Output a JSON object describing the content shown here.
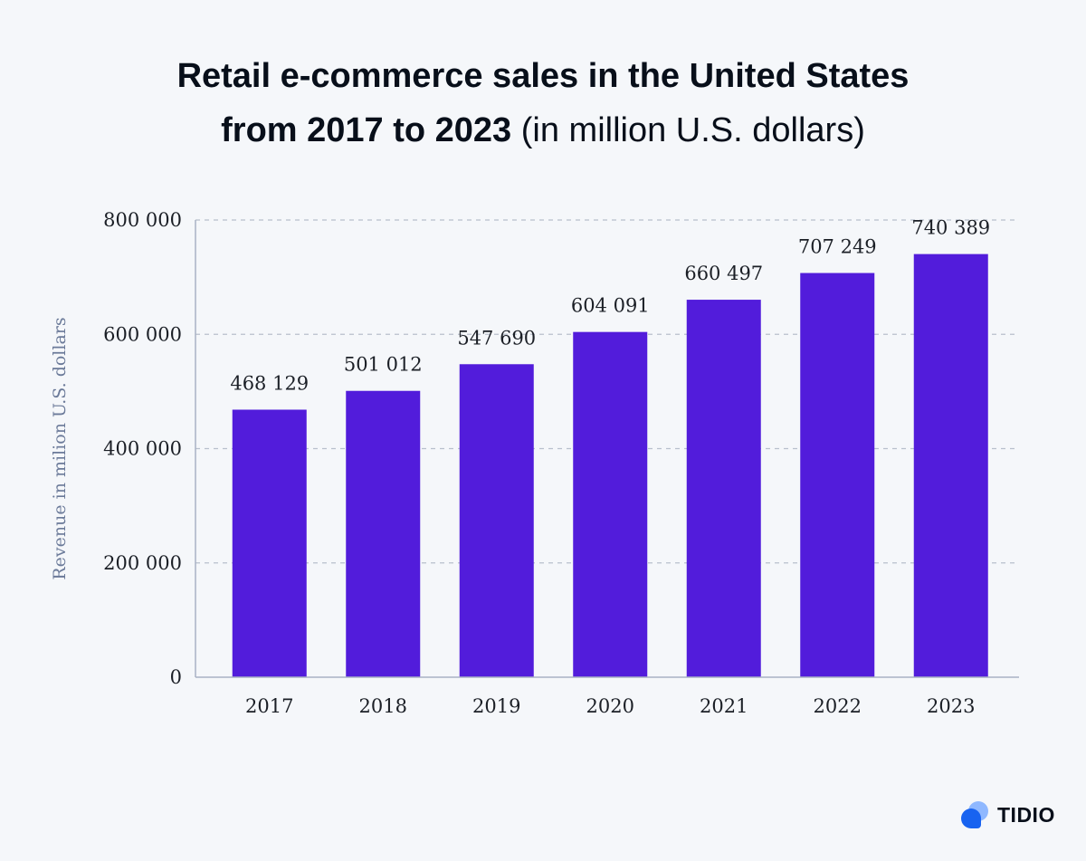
{
  "title": {
    "line1": "Retail e-commerce sales in the United States",
    "line2_bold": "from 2017 to 2023",
    "line2_light": " (in million U.S. dollars)"
  },
  "brand": {
    "name": "TIDIO",
    "icon": "tidio-logo-icon"
  },
  "colors": {
    "bar": "#521cdb",
    "grid": "#b8bfcc",
    "axis": "#a9b2c4",
    "background": "#f5f7fa"
  },
  "chart_data": {
    "type": "bar",
    "title": "Retail e-commerce sales in the United States from 2017 to 2023 (in million U.S. dollars)",
    "xlabel": "",
    "ylabel": "Revenue in milion U.S. dollars",
    "categories": [
      "2017",
      "2018",
      "2019",
      "2020",
      "2021",
      "2022",
      "2023"
    ],
    "values": [
      468129,
      501012,
      547690,
      604091,
      660497,
      707249,
      740389
    ],
    "data_labels": [
      "468 129",
      "501 012",
      "547 690",
      "604 091",
      "660 497",
      "707 249",
      "740 389"
    ],
    "ylim": [
      0,
      800000
    ],
    "yticks": [
      0,
      200000,
      400000,
      600000,
      800000
    ],
    "ytick_labels": [
      "0",
      "200 000",
      "400 000",
      "600 000",
      "800 000"
    ],
    "grid": true,
    "legend": false
  }
}
